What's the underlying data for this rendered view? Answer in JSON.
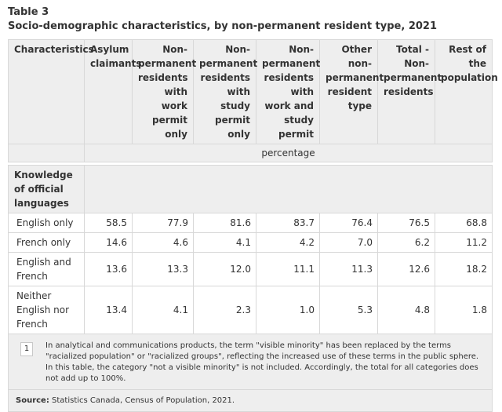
{
  "caption": {
    "label": "Table 3",
    "title": "Socio-demographic characteristics, by non-permanent resident type, 2021"
  },
  "columns": [
    "Characteristics",
    "Asylum claimants",
    "Non-permanent residents with work permit only",
    "Non-permanent residents with study permit only",
    "Non-permanent residents with work and study permit",
    "Other non-permanent resident type",
    "Total - Non-permanent residents",
    "Rest of the population"
  ],
  "units": "percentage",
  "group": "Knowledge of official languages",
  "rows": [
    {
      "label": "English only",
      "values": [
        "58.5",
        "77.9",
        "81.6",
        "83.7",
        "76.4",
        "76.5",
        "68.8"
      ]
    },
    {
      "label": "French only",
      "values": [
        "14.6",
        "4.6",
        "4.1",
        "4.2",
        "7.0",
        "6.2",
        "11.2"
      ]
    },
    {
      "label": "English and French",
      "values": [
        "13.6",
        "13.3",
        "12.0",
        "11.1",
        "11.3",
        "12.6",
        "18.2"
      ]
    },
    {
      "label": "Neither English nor French",
      "values": [
        "13.4",
        "4.1",
        "2.3",
        "1.0",
        "5.3",
        "4.8",
        "1.8"
      ]
    }
  ],
  "footnote": {
    "number": "1",
    "text": "In analytical and communications products, the term \"visible minority\" has been replaced by the terms \"racialized population\" or \"racialized groups\", reflecting the increased use of these terms in the public sphere. In this table, the category \"not a visible minority\" is not included. Accordingly, the total for all categories does not add up to 100%."
  },
  "source": {
    "label": "Source:",
    "text": " Statistics Canada, Census of Population, 2021."
  }
}
